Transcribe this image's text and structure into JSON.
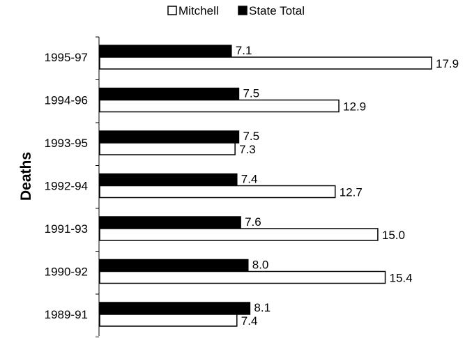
{
  "chart_data": {
    "type": "bar",
    "orientation": "horizontal",
    "title": "",
    "xlabel": "",
    "ylabel": "Deaths",
    "categories": [
      "1995-97",
      "1994-96",
      "1993-95",
      "1992-94",
      "1991-93",
      "1990-92",
      "1989-91"
    ],
    "series": [
      {
        "name": "Mitchell",
        "values": [
          17.9,
          12.9,
          7.3,
          12.7,
          15.0,
          15.4,
          7.4
        ],
        "labels": [
          "17.9",
          "12.9",
          "7.3",
          "12.7",
          "15.0",
          "15.4",
          "7.4"
        ],
        "color": "#ffffff"
      },
      {
        "name": "State Total",
        "values": [
          7.1,
          7.5,
          7.5,
          7.4,
          7.6,
          8.0,
          8.1
        ],
        "labels": [
          "7.1",
          "7.5",
          "7.5",
          "7.4",
          "7.6",
          "8.0",
          "8.1"
        ],
        "color": "#000000"
      }
    ],
    "xlim": [
      0,
      20
    ],
    "grid": false,
    "legend_position": "top-center"
  },
  "colors": {
    "bar_outline": "#000000",
    "text": "#000000",
    "background": "#ffffff"
  }
}
